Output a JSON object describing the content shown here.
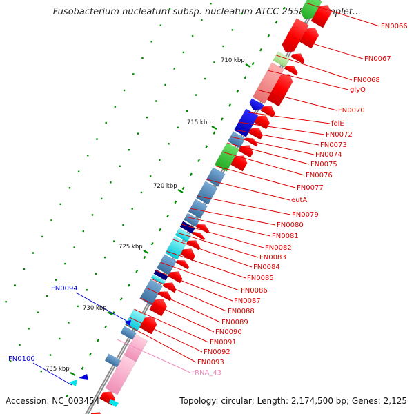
{
  "title": "Fusobacterium nucleatum subsp. nucleatum ATCC 25586, complet...",
  "accession": "Accession: NC_003454",
  "topology": "Topology: circular; Length: 2,174,500 bp; Genes: 2,125",
  "colors": {
    "cds": "#ff0000",
    "rna_gene": "#ffa0b8",
    "blue": "#0000dd",
    "steel": "#4682b4",
    "cyan": "#00e5ee",
    "green": "#33cc33",
    "lightgreen": "#a6e68a",
    "pink": "#f08080",
    "label_red": "#dd0000",
    "label_blue": "#0000cc",
    "label_pink": "#ee88bb",
    "backbone": "#a0a0a0",
    "tick_green": "#008800"
  },
  "scale_labels": [
    "710 kbp",
    "715 kbp",
    "720 kbp",
    "725 kbp",
    "730 kbp",
    "735 kbp"
  ],
  "right_labels": [
    {
      "text": "FN0066",
      "kind": "gene"
    },
    {
      "text": "FN0067",
      "kind": "gene"
    },
    {
      "text": "FN0068",
      "kind": "gene"
    },
    {
      "text": "glyQ",
      "kind": "gene"
    },
    {
      "text": "FN0070",
      "kind": "gene"
    },
    {
      "text": "folE",
      "kind": "gene"
    },
    {
      "text": "FN0072",
      "kind": "gene"
    },
    {
      "text": "FN0073",
      "kind": "gene"
    },
    {
      "text": "FN0074",
      "kind": "gene"
    },
    {
      "text": "FN0075",
      "kind": "gene"
    },
    {
      "text": "FN0076",
      "kind": "gene"
    },
    {
      "text": "FN0077",
      "kind": "gene"
    },
    {
      "text": "eutA",
      "kind": "gene"
    },
    {
      "text": "FN0079",
      "kind": "gene"
    },
    {
      "text": "FN0080",
      "kind": "gene"
    },
    {
      "text": "FN0081",
      "kind": "gene"
    },
    {
      "text": "FN0082",
      "kind": "gene"
    },
    {
      "text": "FN0083",
      "kind": "gene"
    },
    {
      "text": "FN0084",
      "kind": "gene"
    },
    {
      "text": "FN0085",
      "kind": "gene"
    },
    {
      "text": "FN0086",
      "kind": "gene"
    },
    {
      "text": "FN0087",
      "kind": "gene"
    },
    {
      "text": "FN0088",
      "kind": "gene"
    },
    {
      "text": "FN0089",
      "kind": "gene"
    },
    {
      "text": "FN0090",
      "kind": "gene"
    },
    {
      "text": "FN0091",
      "kind": "gene"
    },
    {
      "text": "FN0092",
      "kind": "gene"
    },
    {
      "text": "FN0093",
      "kind": "gene"
    },
    {
      "text": "rRNA_43",
      "kind": "rna"
    }
  ],
  "left_labels": [
    {
      "text": "FN0094"
    },
    {
      "text": "FN0100"
    }
  ]
}
